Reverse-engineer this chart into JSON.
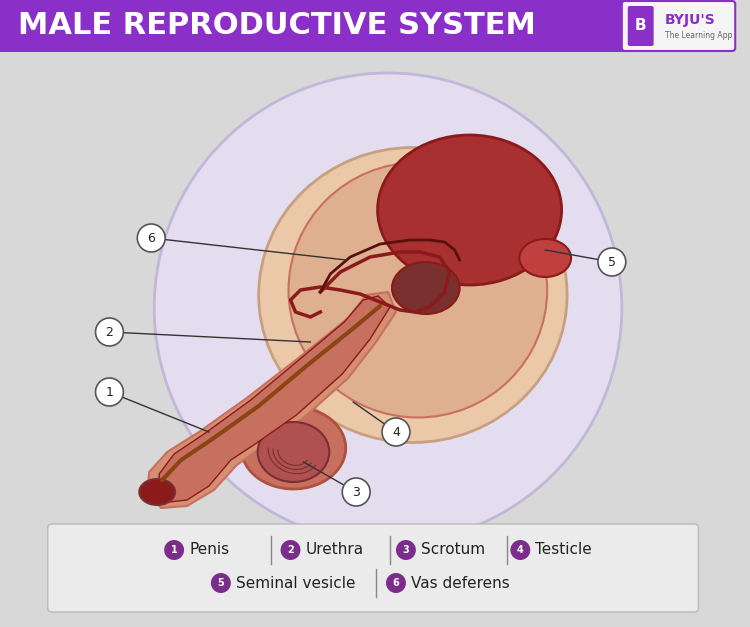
{
  "title": "MALE REPRODUCTIVE SYSTEM",
  "title_color": "#ffffff",
  "title_bg_color": "#8B2FC9",
  "bg_color": "#D8D8D8",
  "legend_items": [
    {
      "num": "1",
      "label": "Penis"
    },
    {
      "num": "2",
      "label": "Urethra"
    },
    {
      "num": "3",
      "label": "Scrotum"
    },
    {
      "num": "4",
      "label": "Testicle"
    },
    {
      "num": "5",
      "label": "Seminal vesicle"
    },
    {
      "num": "6",
      "label": "Vas deferens"
    }
  ],
  "legend_color": "#7B2D8B",
  "separator_color": "#888888",
  "label_color": "#222222",
  "colors": {
    "outer_body": "#D4A090",
    "inner_body": "#C87060",
    "dark_red": "#8B1A1A",
    "bladder": "#A83030",
    "bladder_light": "#C04040",
    "scrotum_outer": "#C87060",
    "scrotum_inner": "#B05040",
    "testis": "#B05050",
    "gland_dark": "#7B3030",
    "urethra_tube": "#8B4513",
    "circle_bg": "#E4DDF0",
    "circle_border": "#C0B8D8",
    "skin_light": "#EBC8A8",
    "skin_mid": "#D49070",
    "skin_dark": "#B87060"
  }
}
